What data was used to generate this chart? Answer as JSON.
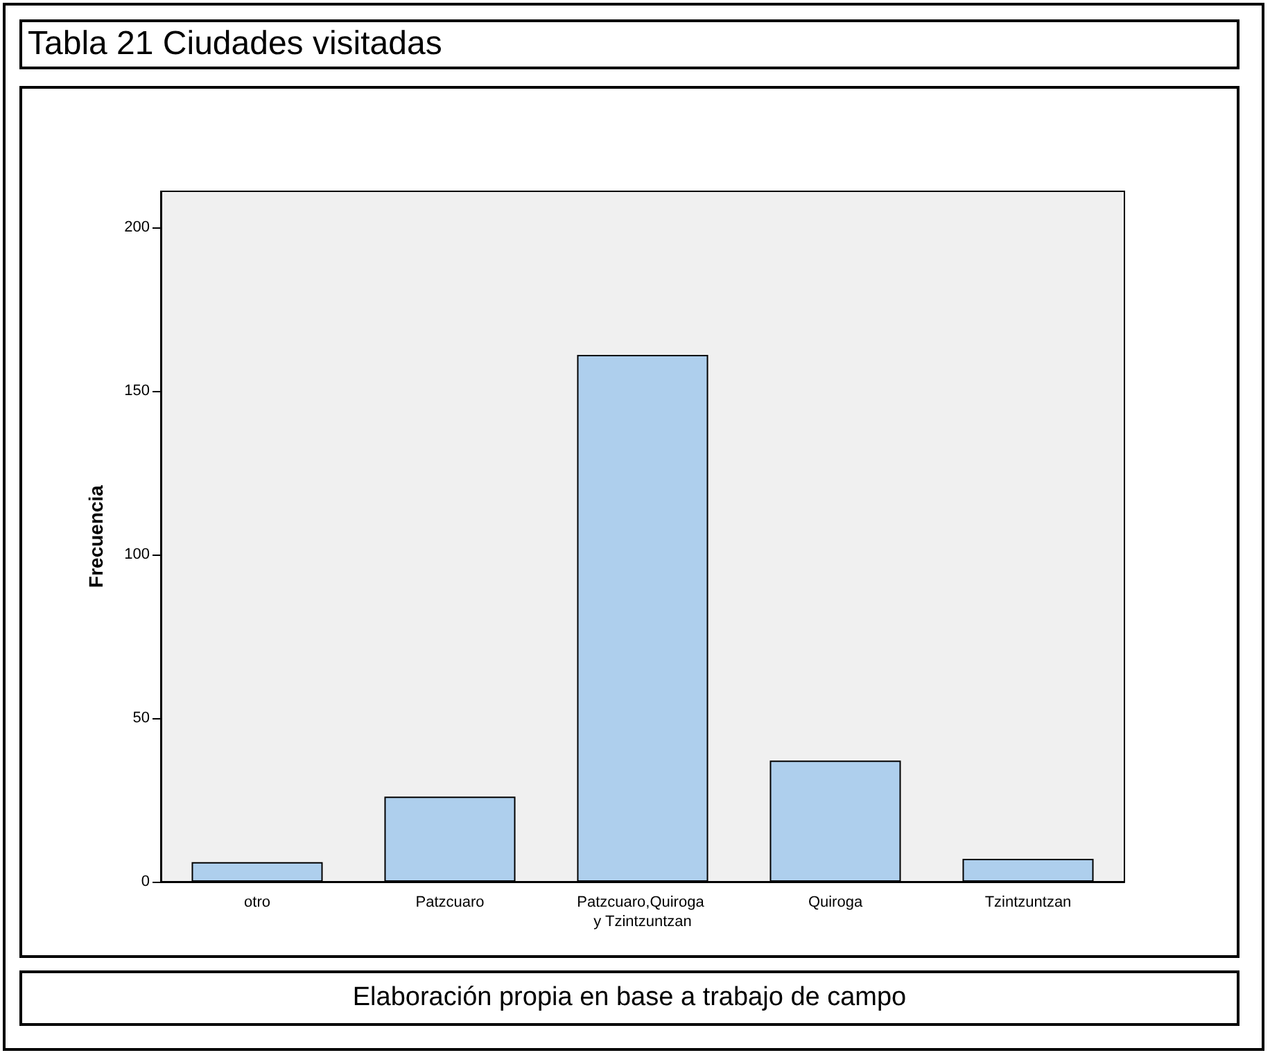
{
  "chart_data": {
    "type": "bar",
    "title": "Tabla 21 Ciudades visitadas",
    "ylabel": "Frecuencia",
    "categories": [
      "otro",
      "Patzcuaro",
      "Patzcuaro,Quiroga y Tzintzuntzan",
      "Quiroga",
      "Tzintzuntzan"
    ],
    "values": [
      6,
      26,
      161,
      37,
      7
    ],
    "color": "#aecfed",
    "ylim": [
      0,
      211
    ],
    "yticks": [
      0,
      50,
      100,
      150,
      200
    ],
    "annotations": [
      "Elaboración propia en base a trabajo de campo"
    ]
  }
}
